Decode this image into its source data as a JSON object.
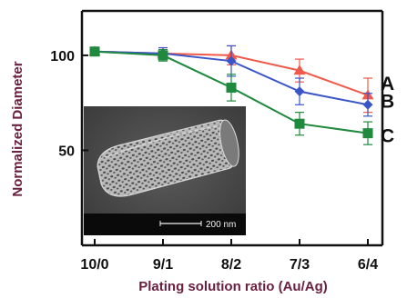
{
  "chart_data": {
    "type": "line",
    "xlabel": "Plating solution ratio (Au/Ag)",
    "ylabel": "Normalized Diameter",
    "categories": [
      "10/0",
      "9/1",
      "8/2",
      "7/3",
      "6/4"
    ],
    "yticks": [
      50,
      100
    ],
    "ylim": [
      0,
      110
    ],
    "grid": false,
    "legend": "none",
    "series": [
      {
        "name": "A",
        "color": "#f05a4a",
        "marker": "triangle",
        "values": [
          102,
          101,
          100,
          92,
          79
        ],
        "errors": [
          2,
          3,
          5,
          6,
          9
        ]
      },
      {
        "name": "B",
        "color": "#3a55c8",
        "marker": "diamond",
        "values": [
          102,
          101,
          97,
          81,
          74
        ],
        "errors": [
          2,
          3,
          8,
          7,
          6
        ]
      },
      {
        "name": "C",
        "color": "#1f8a3e",
        "marker": "square",
        "values": [
          102,
          100,
          83,
          64,
          59
        ],
        "errors": [
          2,
          3,
          7,
          6,
          6
        ]
      }
    ],
    "inset": {
      "kind": "SEM micrograph",
      "scale_bar_label": "200 nm"
    }
  }
}
